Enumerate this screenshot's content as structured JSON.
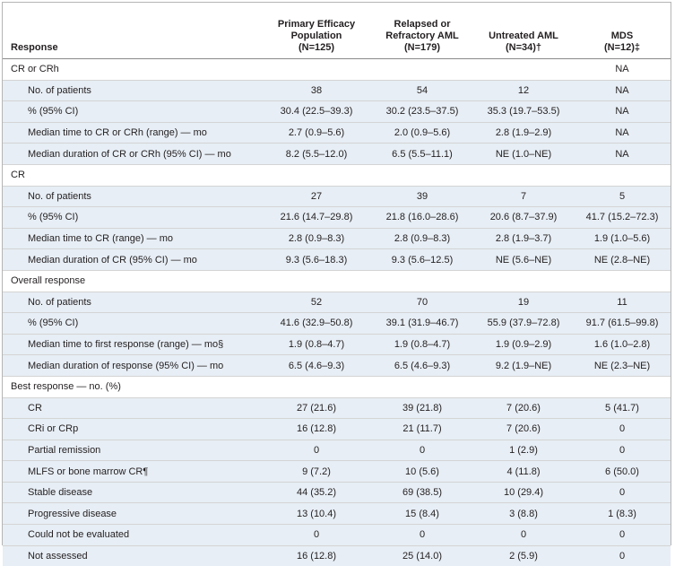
{
  "columns": [
    {
      "line1": "Response",
      "line2": "",
      "line3": ""
    },
    {
      "line1": "Primary Efficacy",
      "line2": "Population",
      "line3": "(N=125)"
    },
    {
      "line1": "Relapsed or",
      "line2": "Refractory AML",
      "line3": "(N=179)"
    },
    {
      "line1": "Untreated AML",
      "line2": "(N=34)†",
      "line3": ""
    },
    {
      "line1": "MDS",
      "line2": "(N=12)‡",
      "line3": ""
    }
  ],
  "rows": [
    {
      "label": "CR or CRh",
      "values": [
        "",
        "",
        "",
        "NA"
      ]
    },
    {
      "label": "No. of patients",
      "values": [
        "38",
        "54",
        "12",
        "NA"
      ]
    },
    {
      "label": "% (95% CI)",
      "values": [
        "30.4 (22.5–39.3)",
        "30.2 (23.5–37.5)",
        "35.3 (19.7–53.5)",
        "NA"
      ]
    },
    {
      "label": "Median time to CR or CRh (range) — mo",
      "values": [
        "2.7 (0.9–5.6)",
        "2.0 (0.9–5.6)",
        "2.8 (1.9–2.9)",
        "NA"
      ]
    },
    {
      "label": "Median duration of CR or CRh (95% CI) — mo",
      "values": [
        "8.2 (5.5–12.0)",
        "6.5 (5.5–11.1)",
        "NE (1.0–NE)",
        "NA"
      ]
    },
    {
      "label": "CR",
      "values": [
        "",
        "",
        "",
        ""
      ]
    },
    {
      "label": "No. of patients",
      "values": [
        "27",
        "39",
        "7",
        "5"
      ]
    },
    {
      "label": "% (95% CI)",
      "values": [
        "21.6 (14.7–29.8)",
        "21.8 (16.0–28.6)",
        "20.6 (8.7–37.9)",
        "41.7 (15.2–72.3)"
      ]
    },
    {
      "label": "Median time to CR (range) — mo",
      "values": [
        "2.8 (0.9–8.3)",
        "2.8 (0.9–8.3)",
        "2.8 (1.9–3.7)",
        "1.9 (1.0–5.6)"
      ]
    },
    {
      "label": "Median duration of CR (95% CI) — mo",
      "values": [
        "9.3 (5.6–18.3)",
        "9.3 (5.6–12.5)",
        "NE (5.6–NE)",
        "NE (2.8–NE)"
      ]
    },
    {
      "label": "Overall response",
      "values": [
        "",
        "",
        "",
        ""
      ]
    },
    {
      "label": "No. of patients",
      "values": [
        "52",
        "70",
        "19",
        "11"
      ]
    },
    {
      "label": "% (95% CI)",
      "values": [
        "41.6 (32.9–50.8)",
        "39.1 (31.9–46.7)",
        "55.9 (37.9–72.8)",
        "91.7 (61.5–99.8)"
      ]
    },
    {
      "label": "Median time to first response (range) — mo§",
      "values": [
        "1.9 (0.8–4.7)",
        "1.9 (0.8–4.7)",
        "1.9 (0.9–2.9)",
        "1.6 (1.0–2.8)"
      ]
    },
    {
      "label": "Median duration of response (95% CI) — mo",
      "values": [
        "6.5 (4.6–9.3)",
        "6.5 (4.6–9.3)",
        "9.2 (1.9–NE)",
        "NE (2.3–NE)"
      ]
    },
    {
      "label": "Best response — no. (%)",
      "values": [
        "",
        "",
        "",
        ""
      ]
    },
    {
      "label": "CR",
      "values": [
        "27 (21.6)",
        "39 (21.8)",
        "7 (20.6)",
        "5 (41.7)"
      ]
    },
    {
      "label": "CRi or CRp",
      "values": [
        "16 (12.8)",
        "21 (11.7)",
        "7 (20.6)",
        "0"
      ]
    },
    {
      "label": "Partial remission",
      "values": [
        "0",
        "0",
        "1 (2.9)",
        "0"
      ]
    },
    {
      "label": "MLFS or bone marrow CR¶",
      "values": [
        "9 (7.2)",
        "10 (5.6)",
        "4 (11.8)",
        "6 (50.0)"
      ]
    },
    {
      "label": "Stable disease",
      "values": [
        "44 (35.2)",
        "69 (38.5)",
        "10 (29.4)",
        "0"
      ]
    },
    {
      "label": "Progressive disease",
      "values": [
        "13 (10.4)",
        "15 (8.4)",
        "3 (8.8)",
        "1 (8.3)"
      ]
    },
    {
      "label": "Could not be evaluated",
      "values": [
        "0",
        "0",
        "0",
        "0"
      ]
    },
    {
      "label": "Not assessed",
      "values": [
        "16 (12.8)",
        "25 (14.0)",
        "2 (5.9)",
        "0"
      ]
    }
  ]
}
